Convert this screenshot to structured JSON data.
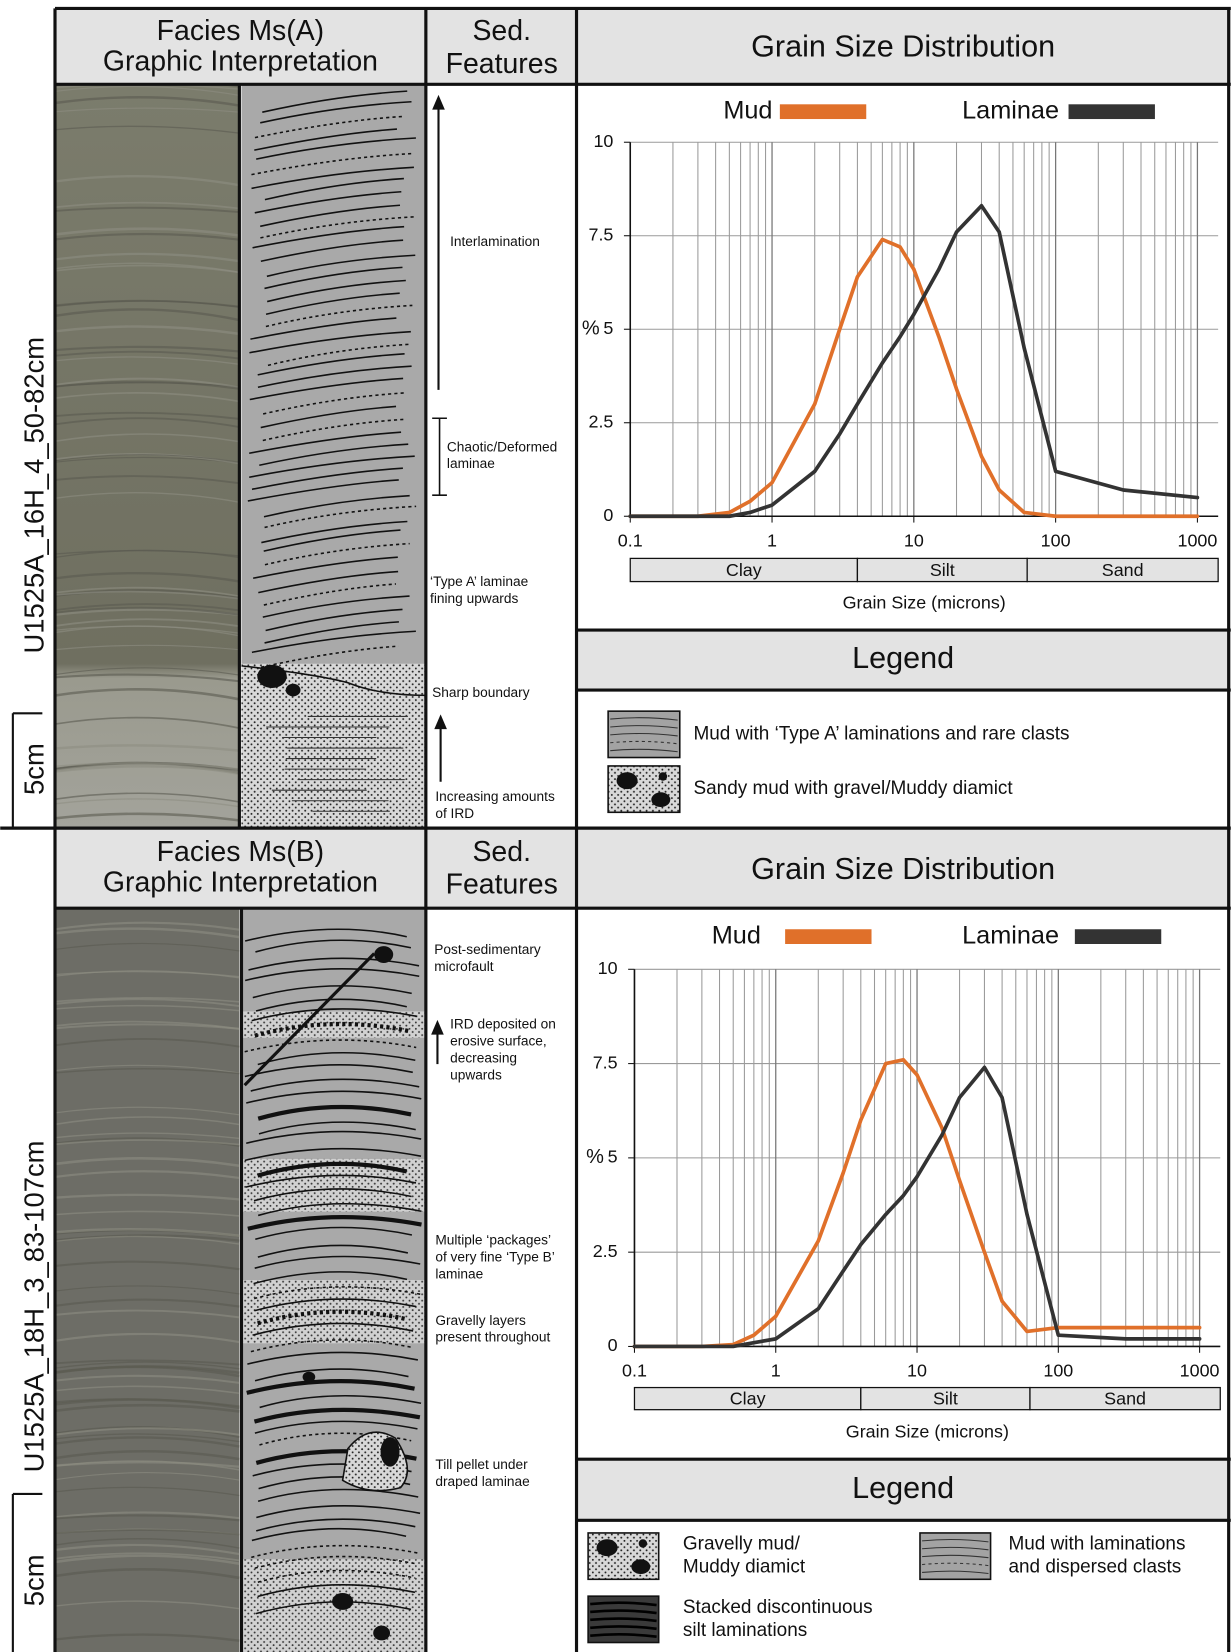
{
  "chart_data": [
    {
      "type": "line",
      "title": "Grain Size Distribution",
      "xlabel": "Grain Size (microns)",
      "ylabel": "%",
      "xscale": "log",
      "grid": true,
      "x": [
        0.1,
        0.3,
        0.5,
        0.7,
        1,
        2,
        3,
        4,
        6,
        8,
        10,
        15,
        20,
        30,
        40,
        60,
        100,
        300,
        1000
      ],
      "series": [
        {
          "name": "Mud",
          "color": "#e0702a",
          "values": [
            0,
            0,
            0.1,
            0.4,
            0.9,
            3.0,
            5.0,
            6.4,
            7.4,
            7.2,
            6.6,
            4.8,
            3.4,
            1.6,
            0.7,
            0.1,
            0,
            0,
            0
          ]
        },
        {
          "name": "Laminae",
          "color": "#333333",
          "values": [
            0,
            0,
            0,
            0.1,
            0.3,
            1.2,
            2.2,
            3.0,
            4.1,
            4.8,
            5.4,
            6.6,
            7.6,
            8.3,
            7.6,
            4.5,
            1.2,
            0.7,
            0.5
          ]
        }
      ],
      "xlim": [
        0.1,
        1400
      ],
      "xticks": [
        0.1,
        1,
        10,
        100,
        1000
      ],
      "xminor_ticks": [
        0.2,
        0.3,
        0.4,
        0.5,
        0.6,
        0.7,
        0.8,
        0.9,
        2,
        3,
        4,
        5,
        6,
        7,
        8,
        9,
        20,
        30,
        40,
        50,
        60,
        70,
        80,
        90,
        200,
        300,
        400,
        500,
        600,
        700,
        800,
        900
      ],
      "ylim": [
        0,
        10
      ],
      "yticks": [
        0,
        2.5,
        5,
        7.5,
        10
      ],
      "size_classes": [
        {
          "label": "Clay",
          "range": [
            0.1,
            4
          ]
        },
        {
          "label": "Silt",
          "range": [
            4,
            63
          ]
        },
        {
          "label": "Sand",
          "range": [
            63,
            1400
          ]
        }
      ]
    },
    {
      "type": "line",
      "title": "Grain Size Distribution",
      "xlabel": "Grain Size (microns)",
      "ylabel": "%",
      "xscale": "log",
      "grid": true,
      "x": [
        0.1,
        0.3,
        0.5,
        0.7,
        1,
        2,
        3,
        4,
        6,
        8,
        10,
        15,
        20,
        30,
        40,
        60,
        100,
        300,
        1000
      ],
      "series": [
        {
          "name": "Mud",
          "color": "#e0702a",
          "values": [
            0,
            0,
            0.05,
            0.3,
            0.8,
            2.8,
            4.6,
            6.0,
            7.5,
            7.6,
            7.2,
            5.8,
            4.4,
            2.5,
            1.2,
            0.4,
            0.5,
            0.5,
            0.5
          ]
        },
        {
          "name": "Laminae",
          "color": "#333333",
          "values": [
            0,
            0,
            0,
            0.1,
            0.2,
            1.0,
            2.0,
            2.7,
            3.5,
            4.0,
            4.5,
            5.6,
            6.6,
            7.4,
            6.6,
            3.5,
            0.3,
            0.2,
            0.2
          ]
        }
      ],
      "xlim": [
        0.1,
        1400
      ],
      "xticks": [
        0.1,
        1,
        10,
        100,
        1000
      ],
      "xminor_ticks": [
        0.2,
        0.3,
        0.4,
        0.5,
        0.6,
        0.7,
        0.8,
        0.9,
        2,
        3,
        4,
        5,
        6,
        7,
        8,
        9,
        20,
        30,
        40,
        50,
        60,
        70,
        80,
        90,
        200,
        300,
        400,
        500,
        600,
        700,
        800,
        900
      ],
      "ylim": [
        0,
        10
      ],
      "yticks": [
        0,
        2.5,
        5,
        7.5,
        10
      ],
      "size_classes": [
        {
          "label": "Clay",
          "range": [
            0.1,
            4
          ]
        },
        {
          "label": "Silt",
          "range": [
            4,
            63
          ]
        },
        {
          "label": "Sand",
          "range": [
            63,
            1400
          ]
        }
      ]
    }
  ],
  "panels": [
    {
      "facies_title": [
        "Facies Ms(A)",
        "Graphic Interpretation"
      ],
      "features_title": [
        "Sed.",
        "Features"
      ],
      "core_label": "U1525A_16H_4_50-82cm",
      "scale_label": "5cm",
      "features": [
        {
          "lines": [
            "Interlamination"
          ]
        },
        {
          "lines": [
            "Chaotic/Deformed",
            "laminae"
          ]
        },
        {
          "lines": [
            "‘Type A’ laminae",
            "fining upwards"
          ]
        },
        {
          "lines": [
            "Sharp boundary"
          ]
        },
        {
          "lines": [
            "Increasing amounts",
            "of IRD"
          ]
        }
      ],
      "legend_title": "Legend",
      "legend_items": [
        {
          "lines": [
            "Mud with ‘Type A’ laminations and rare clasts"
          ]
        },
        {
          "lines": [
            "Sandy mud with gravel/Muddy diamict"
          ]
        }
      ]
    },
    {
      "facies_title": [
        "Facies Ms(B)",
        "Graphic Interpretation"
      ],
      "features_title": [
        "Sed.",
        "Features"
      ],
      "core_label": "U1525A_18H_3_83-107cm",
      "scale_label": "5cm",
      "features": [
        {
          "lines": [
            "Post-sedimentary",
            "microfault"
          ]
        },
        {
          "lines": [
            "IRD deposited on",
            "erosive surface,",
            "decreasing",
            "upwards"
          ]
        },
        {
          "lines": [
            "Multiple ‘packages’",
            "of very fine ‘Type B’",
            "laminae"
          ]
        },
        {
          "lines": [
            "Gravelly layers",
            "present throughout"
          ]
        },
        {
          "lines": [
            "Till pellet under",
            "draped laminae"
          ]
        }
      ],
      "legend_title": "Legend",
      "legend_items": [
        {
          "lines": [
            "Gravelly mud/",
            "Muddy diamict"
          ]
        },
        {
          "lines": [
            "Mud with laminations",
            "and dispersed clasts"
          ]
        },
        {
          "lines": [
            "Stacked discontinuous",
            "silt laminations"
          ]
        }
      ]
    }
  ]
}
